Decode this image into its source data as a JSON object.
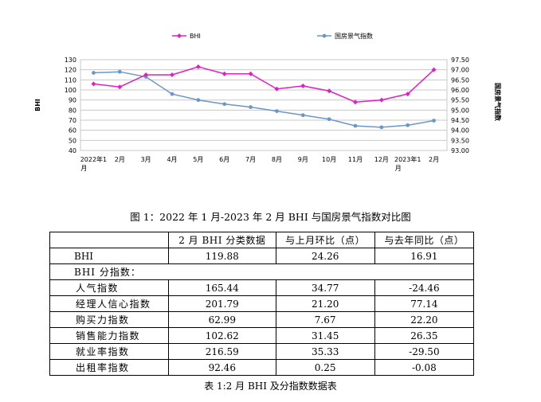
{
  "chart_data": {
    "type": "line",
    "categories": [
      "2022年1月",
      "2月",
      "3月",
      "4月",
      "5月",
      "6月",
      "7月",
      "8月",
      "9月",
      "10月",
      "11月",
      "12月",
      "2023年1月",
      "2月"
    ],
    "series": [
      {
        "name": "BHI",
        "axis": "left",
        "color": "#e020c0",
        "marker": "diamond",
        "values": [
          106,
          103,
          115,
          115,
          123,
          116,
          116,
          101,
          104,
          99,
          88,
          90,
          96,
          120
        ]
      },
      {
        "name": "国房景气指数",
        "axis": "right",
        "color": "#6a97c8",
        "marker": "circle",
        "values": [
          96.85,
          96.9,
          96.65,
          95.8,
          95.5,
          95.3,
          95.15,
          94.95,
          94.75,
          94.55,
          94.22,
          94.15,
          94.25,
          94.48
        ]
      }
    ],
    "ylabel": "BHI",
    "y2label": "国房景气指数",
    "ylim": [
      40,
      130
    ],
    "yticks": [
      40,
      50,
      60,
      70,
      80,
      90,
      100,
      110,
      120,
      130
    ],
    "y2lim": [
      93.0,
      97.5
    ],
    "y2ticks": [
      "93.00",
      "93.50",
      "94.00",
      "94.50",
      "95.00",
      "95.50",
      "96.00",
      "96.50",
      "97.00",
      "97.50"
    ],
    "grid": true,
    "legend": "top"
  },
  "figure_caption": "图 1：2022 年 1 月-2023 年 2 月 BHI 与国房景气指数对比图",
  "table": {
    "headers": [
      "",
      "2 月 BHI 分类数据",
      "与上月环比（点）",
      "与去年同比（点）"
    ],
    "bhi_row": {
      "label": "BHI",
      "values": [
        "119.88",
        "24.26",
        "16.91"
      ]
    },
    "section_label": "BHI 分指数：",
    "rows": [
      {
        "label": "人气指数",
        "values": [
          "165.44",
          "34.77",
          "-24.46"
        ]
      },
      {
        "label": "经理人信心指数",
        "values": [
          "201.79",
          "21.20",
          "77.14"
        ]
      },
      {
        "label": "购买力指数",
        "values": [
          "62.99",
          "7.67",
          "22.20"
        ]
      },
      {
        "label": "销售能力指数",
        "values": [
          "102.62",
          "31.45",
          "26.35"
        ]
      },
      {
        "label": "就业率指数",
        "values": [
          "216.59",
          "35.33",
          "-29.50"
        ]
      },
      {
        "label": "出租率指数",
        "values": [
          "92.46",
          "0.25",
          "-0.08"
        ]
      }
    ]
  },
  "table_caption": "表 1:2 月 BHI 及分指数数据表"
}
